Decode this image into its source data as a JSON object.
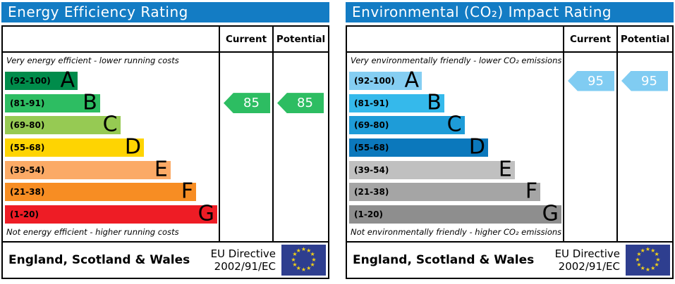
{
  "colors": {
    "header_bar": "#137cc4",
    "eu_flag_blue": "#2e3e8f",
    "eu_star_yellow": "#f2d118"
  },
  "footer": {
    "region": "England, Scotland & Wales",
    "directive_line1": "EU Directive",
    "directive_line2": "2002/91/EC"
  },
  "chart_data": [
    {
      "type": "bar",
      "panel": "energy-efficiency",
      "title": "Energy Efficiency Rating",
      "columns": {
        "current": "Current",
        "potential": "Potential"
      },
      "top_note": "Very energy efficient - lower running costs",
      "bottom_note": "Not energy efficient - higher running costs",
      "bands": [
        {
          "letter": "A",
          "range": "(92-100)",
          "min": 92,
          "max": 100,
          "color": "#008c4b",
          "width": "34%"
        },
        {
          "letter": "B",
          "range": "(81-91)",
          "min": 81,
          "max": 91,
          "color": "#2dbd62",
          "width": "44.5%"
        },
        {
          "letter": "C",
          "range": "(69-80)",
          "min": 69,
          "max": 80,
          "color": "#96ca53",
          "width": "54%"
        },
        {
          "letter": "D",
          "range": "(55-68)",
          "min": 55,
          "max": 68,
          "color": "#fed402",
          "width": "65%"
        },
        {
          "letter": "E",
          "range": "(39-54)",
          "min": 39,
          "max": 54,
          "color": "#fbaa66",
          "width": "77.5%"
        },
        {
          "letter": "F",
          "range": "(21-38)",
          "min": 21,
          "max": 38,
          "color": "#f78d23",
          "width": "89.5%"
        },
        {
          "letter": "G",
          "range": "(1-20)",
          "min": 1,
          "max": 20,
          "color": "#ee1c25",
          "width": "99.3%"
        }
      ],
      "current": {
        "value": 85,
        "band": "B",
        "row": 1,
        "arrow_color": "#2dbd62"
      },
      "potential": {
        "value": 85,
        "band": "B",
        "row": 1,
        "arrow_color": "#2dbd62"
      }
    },
    {
      "type": "bar",
      "panel": "environmental-co2-impact",
      "title": "Environmental (CO₂) Impact Rating",
      "columns": {
        "current": "Current",
        "potential": "Potential"
      },
      "top_note": "Very environmentally friendly - lower CO₂ emissions",
      "bottom_note": "Not environmentally friendly - higher CO₂ emissions",
      "bands": [
        {
          "letter": "A",
          "range": "(92-100)",
          "min": 92,
          "max": 100,
          "color": "#85cef2",
          "width": "34%"
        },
        {
          "letter": "B",
          "range": "(81-91)",
          "min": 81,
          "max": 91,
          "color": "#35b9eb",
          "width": "44.5%"
        },
        {
          "letter": "C",
          "range": "(69-80)",
          "min": 69,
          "max": 80,
          "color": "#1e9cd8",
          "width": "54%"
        },
        {
          "letter": "D",
          "range": "(55-68)",
          "min": 55,
          "max": 68,
          "color": "#0b78bc",
          "width": "65%"
        },
        {
          "letter": "E",
          "range": "(39-54)",
          "min": 39,
          "max": 54,
          "color": "#c0c0c0",
          "width": "77.5%"
        },
        {
          "letter": "F",
          "range": "(21-38)",
          "min": 21,
          "max": 38,
          "color": "#a5a5a5",
          "width": "89.5%"
        },
        {
          "letter": "G",
          "range": "(1-20)",
          "min": 1,
          "max": 20,
          "color": "#8e8e8e",
          "width": "99.3%"
        }
      ],
      "current": {
        "value": 95,
        "band": "A",
        "row": 0,
        "arrow_color": "#80ccf2"
      },
      "potential": {
        "value": 95,
        "band": "A",
        "row": 0,
        "arrow_color": "#80ccf2"
      }
    }
  ]
}
